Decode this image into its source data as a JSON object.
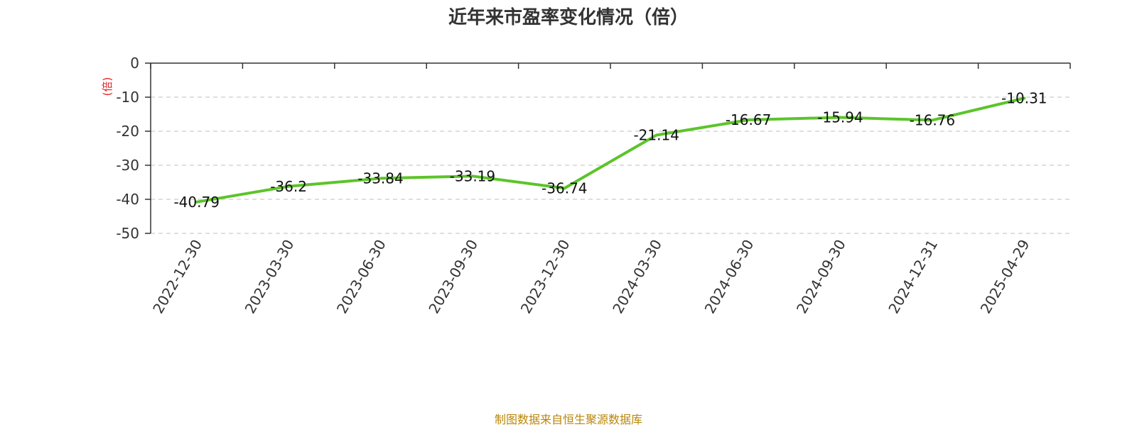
{
  "chart_data": {
    "type": "line",
    "title": "近年来市盈率变化情况（倍）",
    "ylabel": "(倍)",
    "categories": [
      "2022-12-30",
      "2023-03-30",
      "2023-06-30",
      "2023-09-30",
      "2023-12-30",
      "2024-03-30",
      "2024-06-30",
      "2024-09-30",
      "2024-12-31",
      "2025-04-29"
    ],
    "series": [
      {
        "values": [
          -40.79,
          -36.2,
          -33.84,
          -33.19,
          -36.74,
          -21.14,
          -16.67,
          -15.94,
          -16.76,
          -10.31
        ]
      }
    ],
    "data_labels": [
      "-40.79",
      "-36.2",
      "-33.84",
      "-33.19",
      "-36.74",
      "-21.14",
      "-16.67",
      "-15.94",
      "-16.76",
      "-10.31"
    ],
    "yticks": [
      "0",
      "-10",
      "-20",
      "-30",
      "-40",
      "-50"
    ],
    "ylim": [
      -50,
      0
    ],
    "grid": true,
    "line_color": "#5cc42b"
  },
  "source": "制图数据来自恒生聚源数据库"
}
